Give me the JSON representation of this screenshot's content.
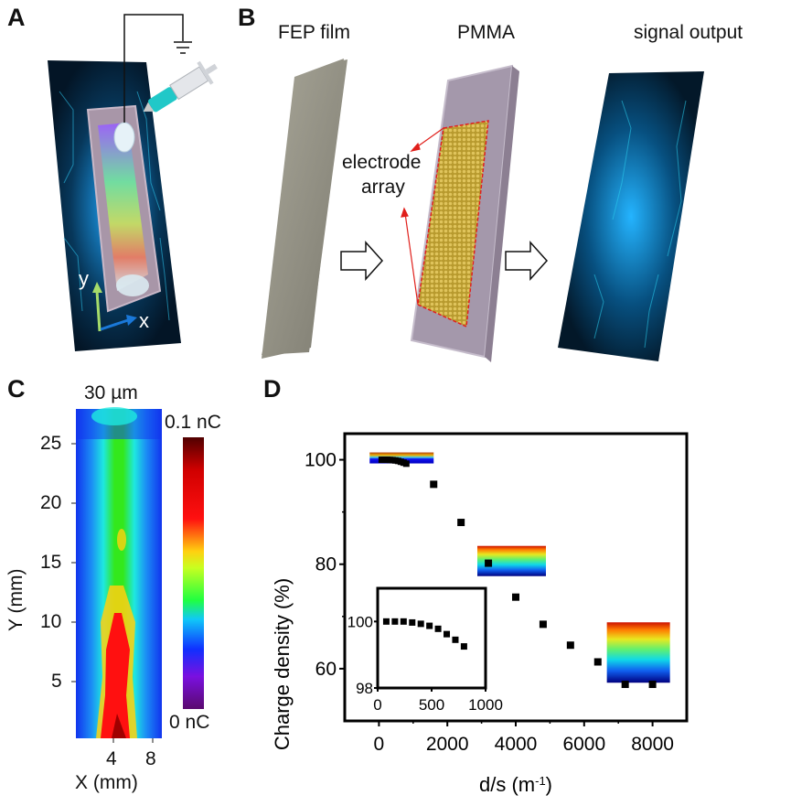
{
  "panels": {
    "a": {
      "letter": "A",
      "axis_labels": {
        "y": "y",
        "x": "x"
      },
      "icons": [
        "ground-icon",
        "syringe-icon",
        "water-droplet-icon",
        "circuit-board-icon"
      ]
    },
    "b": {
      "letter": "B",
      "stage_titles": [
        "FEP film",
        "PMMA",
        "signal output"
      ],
      "annotation_line1": "electrode",
      "annotation_line2": "array",
      "arrows": [
        "right-arrow-icon",
        "right-arrow-icon"
      ]
    },
    "c": {
      "letter": "C",
      "title": "30 µm",
      "colorbar_max": "0.1 nC",
      "colorbar_min": "0 nC",
      "y_ticks": [
        "25",
        "20",
        "15",
        "10",
        "5"
      ],
      "x_ticks": [
        "4",
        "8"
      ],
      "xlabel": "X (mm)",
      "ylabel": "Y (mm)"
    },
    "d": {
      "letter": "D"
    }
  },
  "colors": {
    "marker": "#000000",
    "arrow_red": "#e0201c",
    "circuit_dark": "#041a2c",
    "circuit_glow": "#1fb4ff",
    "pmma": "#a79aa8",
    "electrode": "#c9a93a",
    "fep": "#8d8b80"
  },
  "chart_data": [
    {
      "type": "heatmap",
      "title": "30 µm",
      "xlabel": "X (mm)",
      "ylabel": "Y (mm)",
      "xlim": [
        0,
        9
      ],
      "ylim": [
        0,
        28
      ],
      "x_ticks": [
        4,
        8
      ],
      "y_ticks": [
        5,
        10,
        15,
        20,
        25
      ],
      "colorbar": {
        "min_label": "0 nC",
        "max_label": "0.1 nC",
        "range": [
          0,
          0.1
        ],
        "colormap": "jet"
      },
      "description": "Charge concentrated along central ridge near X≈4 mm, highest (red) at Y<8 mm, green 10–20 mm, cyan/blue toward edges and top"
    },
    {
      "type": "scatter",
      "title": "",
      "xlabel": "d/s (m⁻¹)",
      "ylabel": "Charge density (%)",
      "xlim": [
        -1000,
        9000
      ],
      "ylim": [
        50,
        105
      ],
      "x_ticks": [
        0,
        2000,
        4000,
        6000,
        8000
      ],
      "y_ticks": [
        60,
        80,
        100
      ],
      "grid": false,
      "series": [
        {
          "name": "main",
          "x": [
            80,
            160,
            240,
            320,
            400,
            480,
            560,
            640,
            720,
            800,
            1600,
            2400,
            3200,
            4000,
            4800,
            5600,
            6400,
            7200,
            8000
          ],
          "y": [
            100,
            100,
            100,
            99.97,
            99.93,
            99.87,
            99.78,
            99.62,
            99.45,
            99.25,
            95.3,
            88,
            80.2,
            73.7,
            68.5,
            64.5,
            61.3,
            57,
            57
          ]
        }
      ],
      "inset": {
        "xlim": [
          0,
          1000
        ],
        "ylim": [
          98,
          101
        ],
        "x_ticks": [
          0,
          500,
          1000
        ],
        "y_ticks": [
          98,
          100
        ],
        "x": [
          80,
          160,
          240,
          320,
          400,
          480,
          560,
          640,
          720,
          800
        ],
        "y": [
          100,
          100,
          100,
          99.97,
          99.93,
          99.87,
          99.78,
          99.62,
          99.45,
          99.25
        ]
      },
      "field_maps": [
        {
          "near_x": 1600,
          "shape": "thin-strip"
        },
        {
          "near_x": 4000,
          "shape": "wide-short"
        },
        {
          "near_x": 7600,
          "shape": "square"
        }
      ]
    }
  ]
}
